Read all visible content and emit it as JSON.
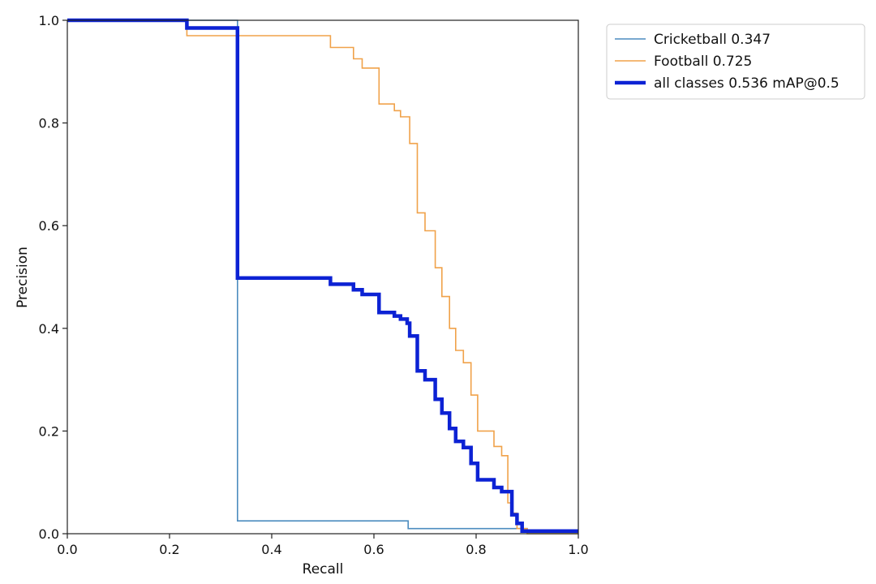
{
  "chart_data": {
    "type": "line",
    "title": "",
    "xlabel": "Recall",
    "ylabel": "Precision",
    "xlim": [
      0.0,
      1.0
    ],
    "ylim": [
      0.0,
      1.0
    ],
    "xticks": [
      "0.0",
      "0.2",
      "0.4",
      "0.6",
      "0.8",
      "1.0"
    ],
    "yticks": [
      "0.0",
      "0.2",
      "0.4",
      "0.6",
      "0.8",
      "1.0"
    ],
    "grid": false,
    "legend_position": "outside-top-right",
    "series": [
      {
        "name": "Cricketball 0.347",
        "color": "#4c8cbf",
        "width": "thin",
        "points": [
          [
            0,
            1.0
          ],
          [
            0.333,
            1.0
          ],
          [
            0.333,
            0.025
          ],
          [
            0.667,
            0.025
          ],
          [
            0.667,
            0.01
          ],
          [
            0.9,
            0.01
          ],
          [
            0.9,
            0.0
          ],
          [
            1.0,
            0.0
          ]
        ]
      },
      {
        "name": "Football 0.725",
        "color": "#f0a24a",
        "width": "thin",
        "points": [
          [
            0,
            1.0
          ],
          [
            0.234,
            1.0
          ],
          [
            0.234,
            0.97
          ],
          [
            0.515,
            0.97
          ],
          [
            0.515,
            0.947
          ],
          [
            0.56,
            0.947
          ],
          [
            0.56,
            0.925
          ],
          [
            0.577,
            0.925
          ],
          [
            0.577,
            0.907
          ],
          [
            0.61,
            0.907
          ],
          [
            0.61,
            0.837
          ],
          [
            0.64,
            0.837
          ],
          [
            0.64,
            0.824
          ],
          [
            0.652,
            0.824
          ],
          [
            0.652,
            0.812
          ],
          [
            0.67,
            0.812
          ],
          [
            0.67,
            0.76
          ],
          [
            0.685,
            0.76
          ],
          [
            0.685,
            0.625
          ],
          [
            0.7,
            0.625
          ],
          [
            0.7,
            0.59
          ],
          [
            0.72,
            0.59
          ],
          [
            0.72,
            0.518
          ],
          [
            0.733,
            0.518
          ],
          [
            0.733,
            0.462
          ],
          [
            0.748,
            0.462
          ],
          [
            0.748,
            0.4
          ],
          [
            0.76,
            0.4
          ],
          [
            0.76,
            0.357
          ],
          [
            0.775,
            0.357
          ],
          [
            0.775,
            0.333
          ],
          [
            0.79,
            0.333
          ],
          [
            0.79,
            0.27
          ],
          [
            0.803,
            0.27
          ],
          [
            0.803,
            0.2
          ],
          [
            0.835,
            0.2
          ],
          [
            0.835,
            0.17
          ],
          [
            0.85,
            0.17
          ],
          [
            0.85,
            0.152
          ],
          [
            0.862,
            0.152
          ],
          [
            0.862,
            0.06
          ],
          [
            0.87,
            0.06
          ],
          [
            0.87,
            0.04
          ],
          [
            0.88,
            0.04
          ],
          [
            0.88,
            0.01
          ],
          [
            0.9,
            0.01
          ],
          [
            0.9,
            0.0
          ],
          [
            1.0,
            0.0
          ]
        ]
      },
      {
        "name": "all classes 0.536 mAP@0.5",
        "color": "#0c22d4",
        "width": "thick",
        "points": [
          [
            0,
            1.0
          ],
          [
            0.234,
            1.0
          ],
          [
            0.234,
            0.985
          ],
          [
            0.333,
            0.985
          ],
          [
            0.333,
            0.498
          ],
          [
            0.515,
            0.498
          ],
          [
            0.515,
            0.486
          ],
          [
            0.56,
            0.486
          ],
          [
            0.56,
            0.475
          ],
          [
            0.577,
            0.475
          ],
          [
            0.577,
            0.466
          ],
          [
            0.61,
            0.466
          ],
          [
            0.61,
            0.431
          ],
          [
            0.64,
            0.431
          ],
          [
            0.64,
            0.424
          ],
          [
            0.652,
            0.424
          ],
          [
            0.652,
            0.418
          ],
          [
            0.665,
            0.418
          ],
          [
            0.665,
            0.41
          ],
          [
            0.67,
            0.41
          ],
          [
            0.67,
            0.385
          ],
          [
            0.685,
            0.385
          ],
          [
            0.685,
            0.317
          ],
          [
            0.7,
            0.317
          ],
          [
            0.7,
            0.3
          ],
          [
            0.72,
            0.3
          ],
          [
            0.72,
            0.262
          ],
          [
            0.733,
            0.262
          ],
          [
            0.733,
            0.235
          ],
          [
            0.748,
            0.235
          ],
          [
            0.748,
            0.205
          ],
          [
            0.76,
            0.205
          ],
          [
            0.76,
            0.18
          ],
          [
            0.775,
            0.18
          ],
          [
            0.775,
            0.168
          ],
          [
            0.79,
            0.168
          ],
          [
            0.79,
            0.137
          ],
          [
            0.803,
            0.137
          ],
          [
            0.803,
            0.105
          ],
          [
            0.835,
            0.105
          ],
          [
            0.835,
            0.09
          ],
          [
            0.85,
            0.09
          ],
          [
            0.85,
            0.082
          ],
          [
            0.87,
            0.082
          ],
          [
            0.87,
            0.037
          ],
          [
            0.88,
            0.037
          ],
          [
            0.88,
            0.02
          ],
          [
            0.89,
            0.02
          ],
          [
            0.89,
            0.005
          ],
          [
            1.0,
            0.005
          ]
        ]
      }
    ]
  }
}
